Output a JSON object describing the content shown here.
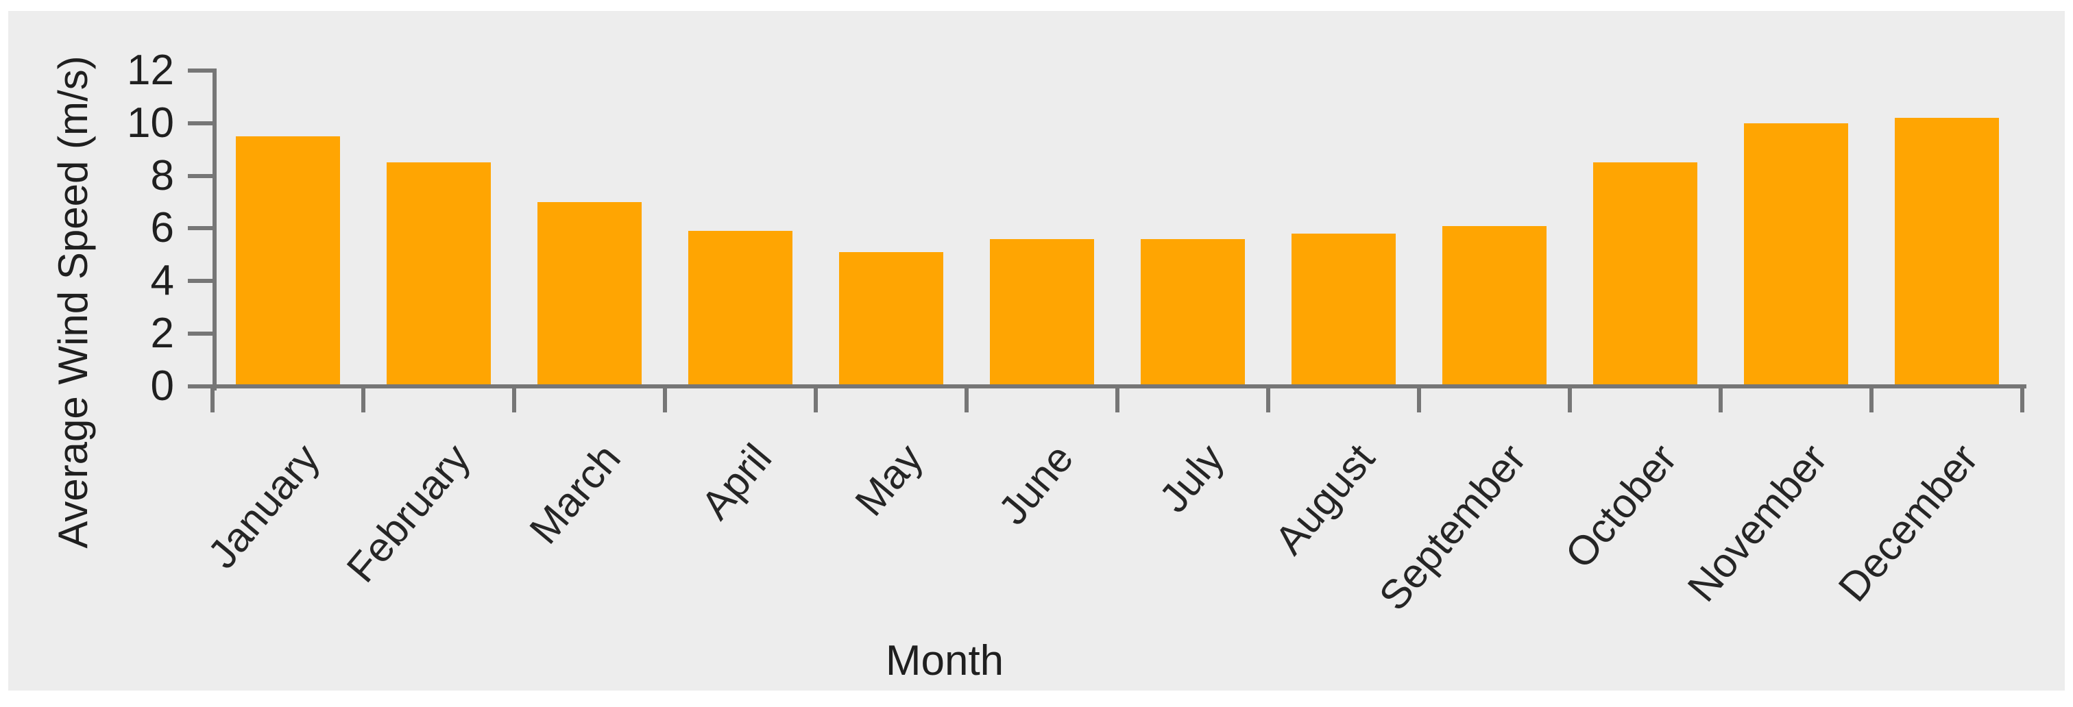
{
  "chart_data": {
    "type": "bar",
    "title": "",
    "categories": [
      "January",
      "February",
      "March",
      "April",
      "May",
      "June",
      "July",
      "August",
      "September",
      "October",
      "November",
      "December"
    ],
    "values": [
      9.5,
      8.5,
      7.0,
      5.9,
      5.1,
      5.6,
      5.6,
      5.8,
      6.1,
      8.5,
      10.0,
      10.2
    ],
    "xlabel": "Month",
    "ylabel": "Average Wind Speed (m/s)",
    "ylim": [
      0,
      12
    ],
    "yticks": [
      0,
      2,
      4,
      6,
      8,
      10,
      12
    ],
    "grid": false,
    "legend": false,
    "bar_color": "#ffa502",
    "axis_color": "#767676",
    "plot_background": "#ededed",
    "page_background": "#ffffff",
    "text_color": "#1f1f1f"
  }
}
